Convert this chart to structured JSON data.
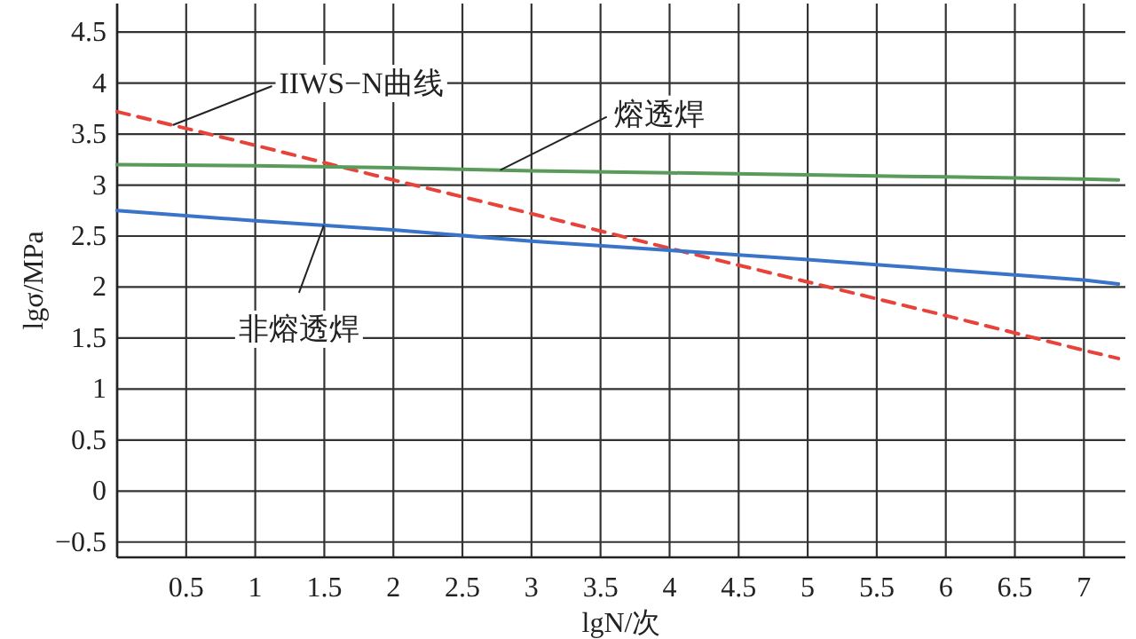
{
  "chart_data": {
    "type": "line",
    "xlabel": "lgN/次",
    "ylabel": "lgσ/MPa",
    "series": [
      {
        "name": "IIWS−N曲线",
        "color": "#e8433a",
        "line_style": "dashed",
        "x": [
          0,
          1,
          2,
          3,
          4,
          5,
          6,
          7,
          7.25
        ],
        "values": [
          3.72,
          3.39,
          3.05,
          2.72,
          2.38,
          2.05,
          1.72,
          1.38,
          1.3
        ]
      },
      {
        "name": "熔透焊",
        "color": "#5a9a5a",
        "line_style": "solid",
        "x": [
          0,
          1,
          2,
          3,
          4,
          5,
          6,
          7,
          7.25
        ],
        "values": [
          3.2,
          3.19,
          3.17,
          3.14,
          3.12,
          3.1,
          3.08,
          3.06,
          3.05
        ]
      },
      {
        "name": "非熔透焊",
        "color": "#3a74c8",
        "line_style": "solid",
        "x": [
          0,
          1,
          2,
          3,
          4,
          5,
          6,
          7,
          7.25
        ],
        "values": [
          2.75,
          2.65,
          2.56,
          2.45,
          2.36,
          2.27,
          2.17,
          2.07,
          2.03
        ]
      }
    ],
    "xlim": [
      0,
      7.3
    ],
    "ylim": [
      -0.65,
      4.78
    ],
    "xticks": [
      {
        "value": 0,
        "label": null
      },
      0.5,
      1,
      1.5,
      2,
      2.5,
      3,
      3.5,
      4,
      4.5,
      5,
      5.5,
      6,
      6.5,
      7
    ],
    "yticks": [
      -0.5,
      0,
      0.5,
      1,
      1.5,
      2,
      2.5,
      3,
      3.5,
      4,
      4.5
    ],
    "grid": true,
    "legend": false
  }
}
